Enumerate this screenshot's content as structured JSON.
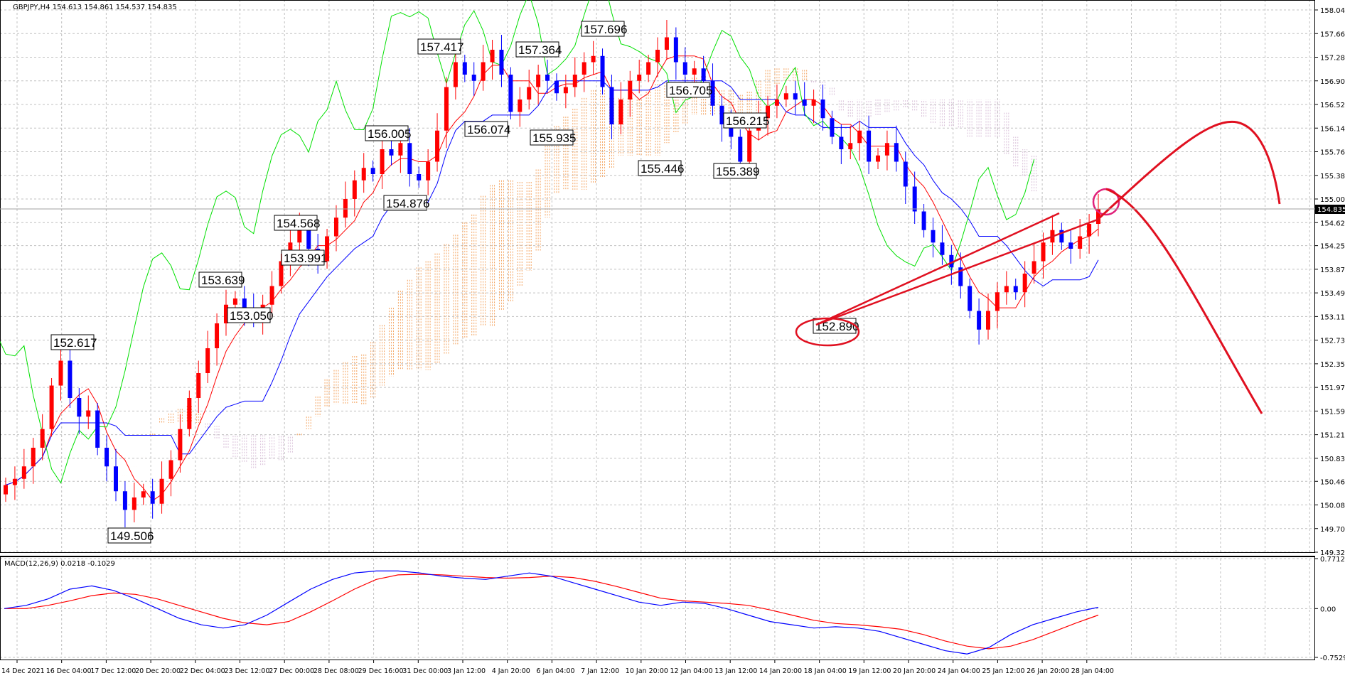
{
  "header": {
    "symbol_line": "GBPJPY,H4  154.613 154.861 154.537 154.835",
    "macd_title": "MACD(12,26,9) 0.0218 -0.1029"
  },
  "colors": {
    "bull": "#ff0000",
    "bear": "#0000ff",
    "tenkan": "#ff0000",
    "kijun": "#0000ff",
    "chikou": "#00e000",
    "kumo_up": "#f4a460",
    "kumo_down": "#d8bfd8",
    "macd": "#0000ff",
    "signal": "#ff0000",
    "grid": "#c0c0c0",
    "annotation": "#e01020",
    "marker": "#e0207a",
    "price_badge": "#000000"
  },
  "chart_data": [
    {
      "type": "candlestick",
      "title": "GBPJPY,H4",
      "ylim": [
        149.32,
        158.04
      ],
      "y_ticks": [
        "158.040",
        "157.660",
        "157.280",
        "156.900",
        "156.520",
        "156.140",
        "155.760",
        "155.380",
        "155.000",
        "154.620",
        "154.250",
        "153.870",
        "153.490",
        "153.110",
        "152.730",
        "152.350",
        "151.970",
        "151.590",
        "151.210",
        "150.830",
        "150.460",
        "150.080",
        "149.700",
        "149.320"
      ],
      "x_ticks": [
        "14 Dec 2021",
        "16 Dec 04:00",
        "17 Dec 12:00",
        "20 Dec 20:00",
        "22 Dec 04:00",
        "23 Dec 12:00",
        "27 Dec 00:00",
        "28 Dec 08:00",
        "29 Dec 16:00",
        "31 Dec 00:00",
        "3 Jan 12:00",
        "4 Jan 20:00",
        "6 Jan 04:00",
        "7 Jan 12:00",
        "10 Jan 20:00",
        "12 Jan 04:00",
        "13 Jan 12:00",
        "14 Jan 20:00",
        "18 Jan 04:00",
        "19 Jan 12:00",
        "20 Jan 20:00",
        "24 Jan 04:00",
        "25 Jan 12:00",
        "26 Jan 20:00",
        "28 Jan 04:00"
      ],
      "current_price": "154.835",
      "price_labels": [
        "152.617",
        "149.506",
        "153.639",
        "153.050",
        "154.568",
        "153.991",
        "156.005",
        "154.876",
        "157.417",
        "156.074",
        "157.364",
        "155.935",
        "157.696",
        "155.446",
        "156.705",
        "156.215",
        "155.389",
        "152.890"
      ],
      "close_path": [
        150.4,
        150.5,
        150.7,
        151.0,
        151.3,
        152.0,
        152.4,
        151.8,
        151.5,
        151.6,
        151.0,
        150.7,
        150.3,
        150.0,
        150.2,
        150.3,
        150.1,
        150.5,
        150.8,
        151.3,
        151.8,
        152.2,
        152.6,
        153.0,
        153.3,
        153.4,
        153.2,
        153.1,
        153.3,
        153.6,
        154.0,
        154.3,
        154.5,
        154.2,
        154.0,
        154.4,
        154.7,
        155.0,
        155.3,
        155.5,
        155.4,
        155.8,
        155.7,
        155.9,
        155.4,
        155.3,
        155.6,
        156.1,
        156.8,
        157.2,
        157.0,
        156.9,
        157.2,
        157.4,
        157.0,
        156.4,
        156.6,
        156.8,
        157.0,
        156.9,
        156.7,
        156.8,
        157.0,
        157.2,
        157.3,
        156.8,
        156.2,
        156.6,
        156.9,
        157.0,
        157.2,
        157.4,
        157.6,
        157.2,
        157.0,
        157.1,
        156.9,
        156.5,
        156.2,
        156.0,
        155.6,
        156.1,
        156.3,
        156.5,
        156.6,
        156.7,
        156.6,
        156.5,
        156.6,
        156.3,
        156.0,
        155.8,
        155.9,
        156.1,
        155.6,
        155.7,
        155.9,
        155.6,
        155.2,
        154.8,
        154.5,
        154.3,
        154.1,
        153.9,
        153.6,
        153.2,
        152.9,
        153.2,
        153.5,
        153.6,
        153.5,
        153.8,
        154.0,
        154.3,
        154.5,
        154.3,
        154.2,
        154.4,
        154.6,
        154.84
      ],
      "macd": {
        "ylim": [
          -0.7529,
          0.7712
        ],
        "y_ticks": [
          "0.7712",
          "0.00",
          "-0.7529"
        ],
        "macd_line": [
          0.0,
          0.05,
          0.15,
          0.3,
          0.35,
          0.28,
          0.15,
          0.0,
          -0.15,
          -0.25,
          -0.3,
          -0.25,
          -0.1,
          0.1,
          0.3,
          0.45,
          0.55,
          0.58,
          0.58,
          0.55,
          0.5,
          0.47,
          0.45,
          0.5,
          0.55,
          0.5,
          0.4,
          0.3,
          0.2,
          0.1,
          0.05,
          0.1,
          0.08,
          0.0,
          -0.1,
          -0.2,
          -0.25,
          -0.3,
          -0.28,
          -0.3,
          -0.35,
          -0.45,
          -0.55,
          -0.65,
          -0.7,
          -0.6,
          -0.4,
          -0.25,
          -0.15,
          -0.05,
          0.02
        ],
        "signal_line": [
          0.0,
          0.0,
          0.05,
          0.12,
          0.2,
          0.24,
          0.22,
          0.15,
          0.05,
          -0.05,
          -0.15,
          -0.22,
          -0.25,
          -0.2,
          -0.05,
          0.12,
          0.3,
          0.45,
          0.52,
          0.53,
          0.52,
          0.5,
          0.48,
          0.47,
          0.48,
          0.5,
          0.48,
          0.42,
          0.34,
          0.25,
          0.16,
          0.12,
          0.1,
          0.08,
          0.05,
          -0.02,
          -0.1,
          -0.18,
          -0.23,
          -0.25,
          -0.28,
          -0.32,
          -0.4,
          -0.5,
          -0.58,
          -0.62,
          -0.58,
          -0.48,
          -0.35,
          -0.22,
          -0.1
        ]
      }
    }
  ]
}
